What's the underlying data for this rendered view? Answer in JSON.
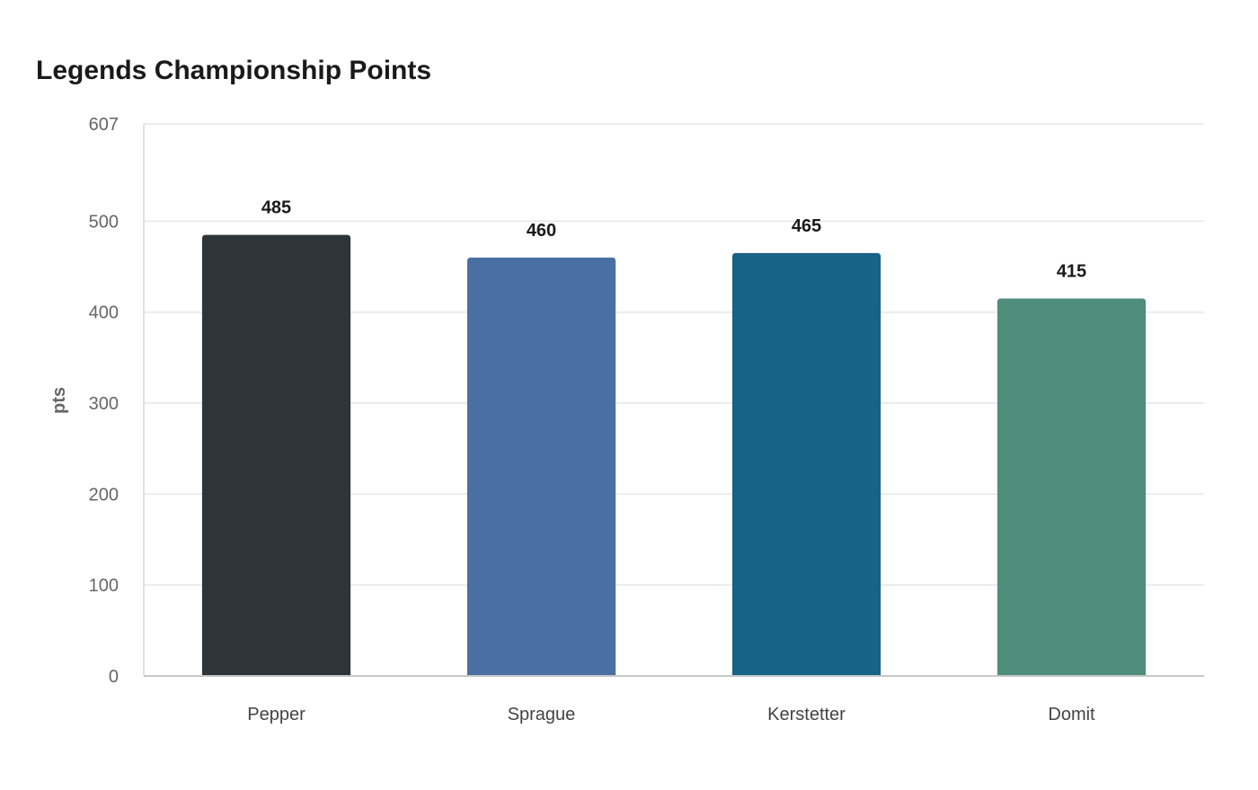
{
  "chart_data": {
    "type": "bar",
    "title": "Legends Championship Points",
    "xlabel": "",
    "ylabel": "pts",
    "categories": [
      "Pepper",
      "Sprague",
      "Kerstetter",
      "Domit"
    ],
    "values": [
      485,
      460,
      465,
      415
    ],
    "colors": [
      "#2e3538",
      "#4a6fa3",
      "#186287",
      "#4f8e7b"
    ],
    "ylim": [
      0,
      607
    ],
    "yticks": [
      0,
      100,
      200,
      300,
      400,
      500,
      607
    ],
    "grid": true,
    "legend": "none"
  }
}
